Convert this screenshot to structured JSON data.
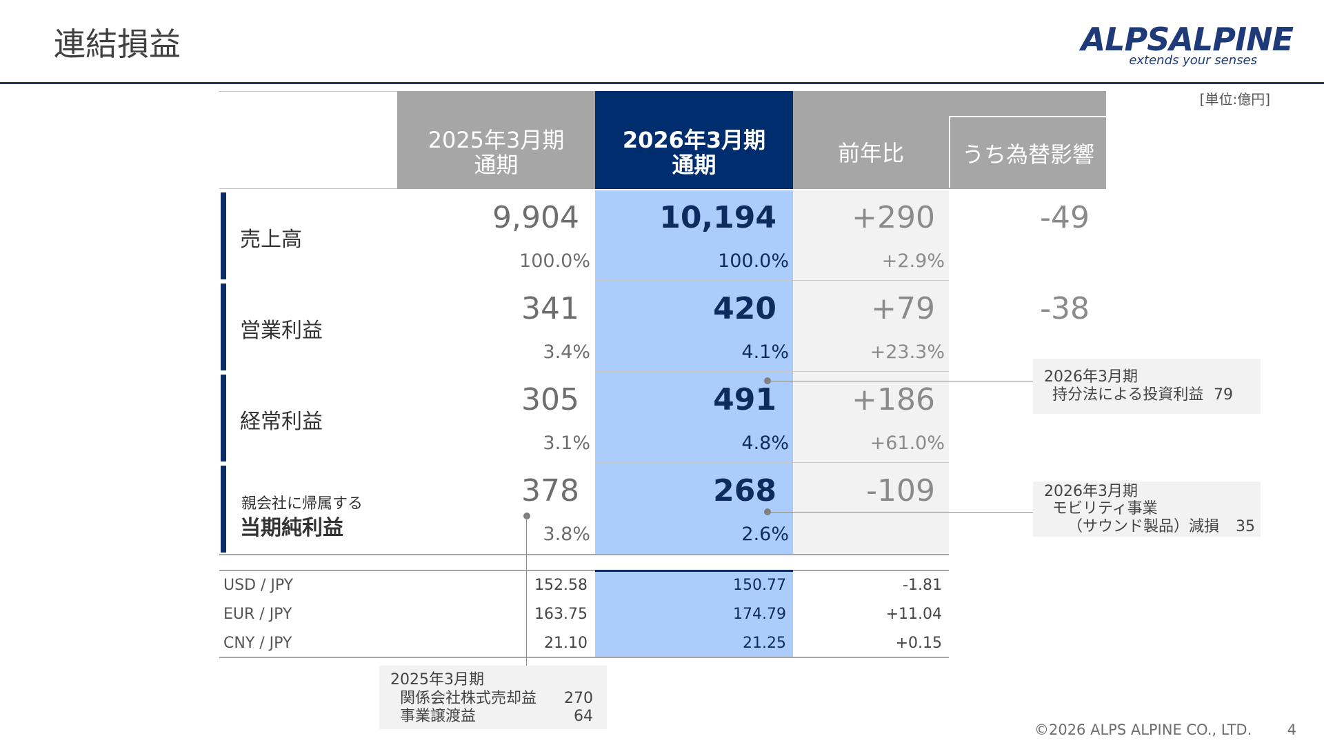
{
  "page": {
    "title": "連結損益",
    "unit": "[単位:億円]",
    "copyright": "©2026 ALPS ALPINE CO., LTD.",
    "page_number": "4"
  },
  "logo": {
    "brand": "ALPSALPINE",
    "tagline": "extends your senses",
    "color": "#1f3a78"
  },
  "headers": {
    "fy2025_l1": "2025年3月期",
    "fy2025_l2": "通期",
    "fy2026_l1": "2026年3月期",
    "fy2026_l2": "通期",
    "yoy": "前年比",
    "fx_impact": "うち為替影響"
  },
  "rows": [
    {
      "label": "売上高",
      "prev": "9,904",
      "prev_pct": "100.0%",
      "cur": "10,194",
      "cur_pct": "100.0%",
      "diff": "+290",
      "diff_pct": "+2.9%",
      "fx": "-49"
    },
    {
      "label": "営業利益",
      "prev": "341",
      "prev_pct": "3.4%",
      "cur": "420",
      "cur_pct": "4.1%",
      "diff": "+79",
      "diff_pct": "+23.3%",
      "fx": "-38"
    },
    {
      "label": "経常利益",
      "prev": "305",
      "prev_pct": "3.1%",
      "cur": "491",
      "cur_pct": "4.8%",
      "diff": "+186",
      "diff_pct": "+61.0%",
      "fx": ""
    },
    {
      "label_small": "親会社に帰属する",
      "label": "当期純利益",
      "prev": "378",
      "prev_pct": "3.8%",
      "cur": "268",
      "cur_pct": "2.6%",
      "diff": "-109",
      "diff_pct": "",
      "fx": ""
    }
  ],
  "fx_rates": [
    {
      "pair": "USD / JPY",
      "prev": "152.58",
      "cur": "150.77",
      "diff": "-1.81"
    },
    {
      "pair": "EUR / JPY",
      "prev": "163.75",
      "cur": "174.79",
      "diff": "+11.04"
    },
    {
      "pair": "CNY / JPY",
      "prev": "21.10",
      "cur": "21.25",
      "diff": "+0.15"
    }
  ],
  "notes": {
    "equity": {
      "l1": "2026年3月期",
      "l2": "持分法による投資利益",
      "v2": "79"
    },
    "mobility": {
      "l1": "2026年3月期",
      "l2": "モビリティ事業",
      "l3": "（サウンド製品）減損",
      "v3": "35"
    },
    "gain": {
      "l1": "2025年3月期",
      "l2": "関係会社株式売却益",
      "v2": "270",
      "l3": "事業譲渡益",
      "v3": "64"
    }
  },
  "colors": {
    "header_gray": "#a6a6a6",
    "header_current": "#002d6e",
    "current_column": "#abcdfb",
    "diff_column": "#f2f2f2",
    "row_bar": "#0d2c66"
  }
}
